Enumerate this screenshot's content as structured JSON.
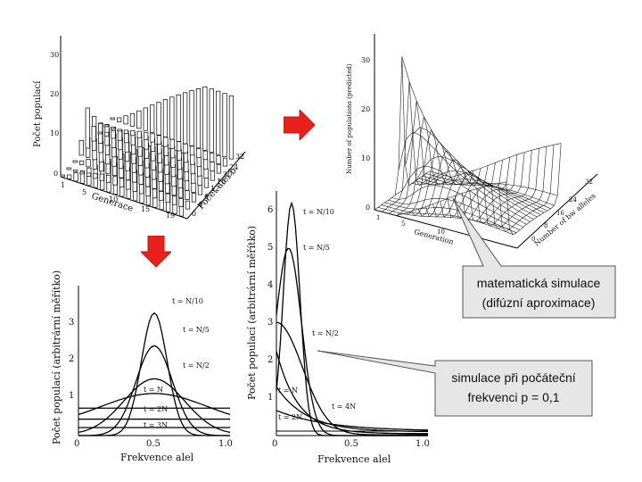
{
  "panel_top_left": {
    "ylabel": "Počet populací",
    "yticks": [
      "0",
      "10",
      "20",
      "30"
    ],
    "xlabel": "Generace",
    "xticks": [
      "1",
      "5",
      "10",
      "15",
      "19"
    ],
    "zlabel": "Počet alel b",
    "zticks": [
      "0",
      "4",
      "8",
      "12",
      "16",
      "20",
      "24",
      "32"
    ]
  },
  "panel_top_right": {
    "ylabel": "Number of populations (predicted)",
    "yticks": [
      "0",
      "10",
      "20",
      "30"
    ],
    "xlabel": "Generation",
    "xticks": [
      "1",
      "5",
      "10"
    ],
    "zlabel": "Number of bw alleles",
    "zticks": [
      "0",
      "8",
      "16",
      "24",
      "32"
    ]
  },
  "panel_bottom_left": {
    "ylabel": "Počet populací (arbitrární měřítko)",
    "yticks": [
      "1",
      "2",
      "3"
    ],
    "xlabel": "Frekvence alel",
    "xticks": [
      "0",
      "0.5",
      "1.0"
    ],
    "curve_labels": [
      "t = N/10",
      "t = N/5",
      "t = N/2",
      "t = N",
      "t = 2N",
      "t = 3N"
    ]
  },
  "panel_bottom_right": {
    "ylabel": "Počet populací (arbitrární měřítko)",
    "yticks": [
      "1",
      "2",
      "3",
      "4",
      "5",
      "6"
    ],
    "xlabel": "Frekvence alel",
    "xticks": [
      "0",
      "0.5",
      "1.0"
    ],
    "curve_labels": [
      "t = N/10",
      "t = N/5",
      "t = N/2",
      "t = N",
      "t = 2N",
      "t = 4N"
    ]
  },
  "callout_math": {
    "line1": "matematická simulace",
    "line2": "(difúzní aproximace)"
  },
  "callout_sim": {
    "line1": "simulace při počáteční",
    "line2": "frekvenci p = 0,1"
  },
  "colors": {
    "arrow_red": "#e8211c",
    "callout_fill": "#e6e6e6"
  },
  "icons": [
    "arrow-right-icon",
    "arrow-down-icon"
  ]
}
